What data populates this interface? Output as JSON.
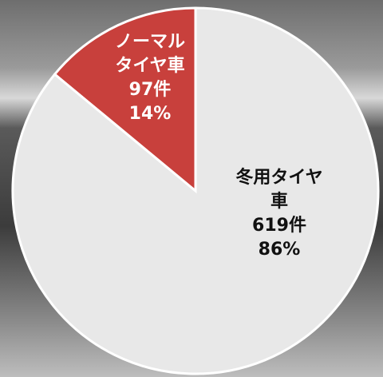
{
  "chart_data": {
    "type": "pie",
    "categories": [
      "ノーマル\nタイヤ車",
      "冬用タイヤ車"
    ],
    "values": [
      14,
      86
    ],
    "value_labels": [
      "14%",
      "86%"
    ],
    "counts": [
      97,
      619
    ],
    "count_labels": [
      "97件",
      "619件"
    ],
    "colors": [
      "#c8403c",
      "#e8e8e8"
    ],
    "label_colors": [
      "#ffffff",
      "#111111"
    ]
  }
}
